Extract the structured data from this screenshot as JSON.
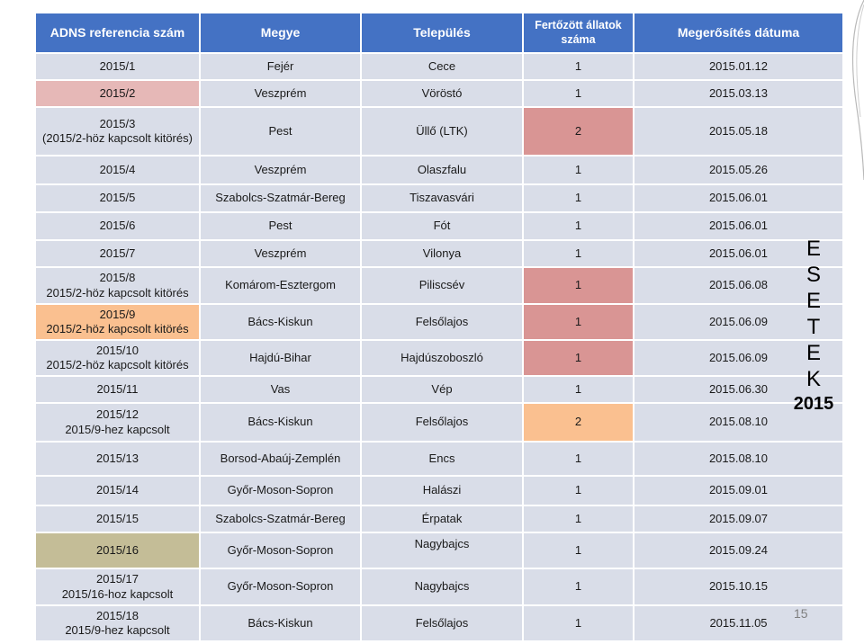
{
  "table": {
    "headers": [
      "ADNS referencia szám",
      "Megye",
      "Település",
      "Fertőzött állatok száma",
      "Megerősítés dátuma"
    ],
    "header_lines": {
      "col4_line1": "Fertőzött állatok",
      "col4_line2": "száma"
    },
    "rows": [
      {
        "ref": "2015/1",
        "megye": "Fejér",
        "telepules": "Cece",
        "szam": "1",
        "datum": "2015.01.12"
      },
      {
        "ref": "2015/2",
        "megye": "Veszprém",
        "telepules": "Vöröstó",
        "szam": "1",
        "datum": "2015.03.13"
      },
      {
        "ref_line1": "2015/3",
        "ref_line2": "(2015/2-höz kapcsolt kitörés)",
        "megye": "Pest",
        "telepules": "Üllő (LTK)",
        "szam": "2",
        "datum": "2015.05.18"
      },
      {
        "ref": "2015/4",
        "megye": "Veszprém",
        "telepules": "Olaszfalu",
        "szam": "1",
        "datum": "2015.05.26"
      },
      {
        "ref": "2015/5",
        "megye": "Szabolcs-Szatmár-Bereg",
        "telepules": "Tiszavasvári",
        "szam": "1",
        "datum": "2015.06.01"
      },
      {
        "ref": "2015/6",
        "megye": "Pest",
        "telepules": "Fót",
        "szam": "1",
        "datum": "2015.06.01"
      },
      {
        "ref": "2015/7",
        "megye": "Veszprém",
        "telepules": "Vilonya",
        "szam": "1",
        "datum": "2015.06.01"
      },
      {
        "ref_line1": "2015/8",
        "ref_line2": "2015/2-höz kapcsolt kitörés",
        "megye": "Komárom-Esztergom",
        "telepules": "Piliscsév",
        "szam": "1",
        "datum": "2015.06.08"
      },
      {
        "ref_line1": "2015/9",
        "ref_line2": "2015/2-höz kapcsolt kitörés",
        "megye": "Bács-Kiskun",
        "telepules": "Felsőlajos",
        "szam": "1",
        "datum": "2015.06.09"
      },
      {
        "ref_line1": "2015/10",
        "ref_line2": "2015/2-höz kapcsolt kitörés",
        "megye": "Hajdú-Bihar",
        "telepules": "Hajdúszoboszló",
        "szam": "1",
        "datum": "2015.06.09"
      },
      {
        "ref": "2015/11",
        "megye": "Vas",
        "telepules": "Vép",
        "szam": "1",
        "datum": "2015.06.30"
      },
      {
        "ref_line1": "2015/12",
        "ref_line2": "2015/9-hez kapcsolt",
        "megye": "Bács-Kiskun",
        "telepules": "Felsőlajos",
        "szam": "2",
        "datum": "2015.08.10"
      },
      {
        "ref": "2015/13",
        "megye": "Borsod-Abaúj-Zemplén",
        "telepules": "Encs",
        "szam": "1",
        "datum": "2015.08.10"
      },
      {
        "ref": "2015/14",
        "megye": "Győr-Moson-Sopron",
        "telepules": "Halászi",
        "szam": "1",
        "datum": "2015.09.01"
      },
      {
        "ref": "2015/15",
        "megye": "Szabolcs-Szatmár-Bereg",
        "telepules": "Érpatak",
        "szam": "1",
        "datum": "2015.09.07"
      },
      {
        "ref": "2015/16",
        "megye": "Győr-Moson-Sopron",
        "telepules": "Nagybajcs",
        "szam": "1",
        "datum": "2015.09.24"
      },
      {
        "ref_line1": "2015/17",
        "ref_line2": "2015/16-hoz kapcsolt",
        "megye": "Győr-Moson-Sopron",
        "telepules": "Nagybajcs",
        "szam": "1",
        "datum": "2015.10.15"
      },
      {
        "ref_line1": "2015/18",
        "ref_line2": "2015/9-hez kapcsolt",
        "megye": "Bács-Kiskun",
        "telepules": "Felsőlajos",
        "szam": "1",
        "datum": "2015.11.05"
      }
    ]
  },
  "side_label": {
    "letters": [
      "E",
      "S",
      "E",
      "T",
      "E",
      "K"
    ],
    "year": "2015"
  },
  "page_number": "15",
  "colors": {
    "header": "#4472c4",
    "row": "#d9dde8",
    "pink": "#e6b8b7",
    "rose": "#d99594",
    "peach": "#fac090",
    "tan": "#c4bd97"
  }
}
